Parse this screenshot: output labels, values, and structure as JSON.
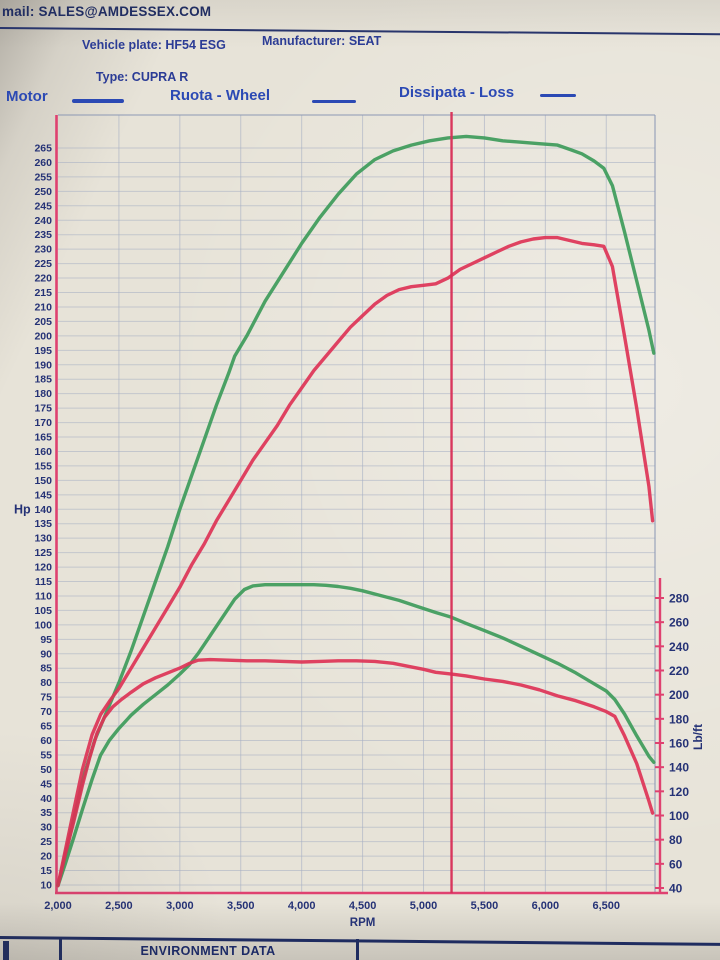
{
  "header": {
    "email_line": "mail: SALES@AMDESSEX.COM",
    "vehicle_plate": "Vehicle plate: HF54 ESG",
    "vehicle_type": "Type: CUPRA R",
    "manufacturer": "Manufacturer: SEAT"
  },
  "legend": {
    "items": [
      {
        "label": "Motor"
      },
      {
        "label": "Ruota - Wheel"
      },
      {
        "label": "Dissipata - Loss"
      }
    ],
    "swatch_color": "#2b49b4"
  },
  "footer": {
    "section_title": "ENVIRONMENT DATA"
  },
  "colors": {
    "paper": "#e7e3d8",
    "grid": "#a6afc4",
    "grid_border": "#8d99b5",
    "axis_pink": "#df4170",
    "marker_red": "#d92e57",
    "curve_green": "#3d9b5a",
    "curve_red": "#dd3356",
    "label_navy": "#253276",
    "header_blue": "#2b3c96"
  },
  "chart_data": {
    "type": "line",
    "title": "",
    "xlabel": "RPM",
    "x_axis": {
      "min": 2000,
      "max": 6900,
      "tick_step": 500,
      "tick_values": [
        2000,
        2500,
        3000,
        3500,
        4000,
        4500,
        5000,
        5500,
        6000,
        6500
      ],
      "tick_labels": [
        "2,000",
        "2,500",
        "3,000",
        "3,500",
        "4,000",
        "4,500",
        "5,000",
        "5,500",
        "6,000",
        "6,500"
      ]
    },
    "y_left": {
      "label": "Hp",
      "min": 10,
      "max": 265,
      "step": 5
    },
    "y_right": {
      "label": "Lb/ft",
      "min": 40,
      "max": 280,
      "step": 20
    },
    "marker_rpm": 5230,
    "grid": true,
    "series": [
      {
        "name": "motor-power",
        "legend": "Motor",
        "axis": "left",
        "unit": "Hp",
        "color": "#3d9b5a",
        "points": [
          [
            2000,
            10
          ],
          [
            2060,
            20
          ],
          [
            2130,
            33
          ],
          [
            2200,
            46
          ],
          [
            2300,
            60
          ],
          [
            2400,
            70
          ],
          [
            2500,
            80
          ],
          [
            2600,
            91
          ],
          [
            2700,
            103
          ],
          [
            2800,
            115
          ],
          [
            2900,
            127
          ],
          [
            3000,
            140
          ],
          [
            3100,
            152
          ],
          [
            3200,
            164
          ],
          [
            3300,
            176
          ],
          [
            3400,
            187
          ],
          [
            3450,
            193
          ],
          [
            3550,
            200
          ],
          [
            3700,
            212
          ],
          [
            3850,
            222
          ],
          [
            4000,
            232
          ],
          [
            4150,
            241
          ],
          [
            4300,
            249
          ],
          [
            4450,
            256
          ],
          [
            4600,
            261
          ],
          [
            4750,
            264
          ],
          [
            4900,
            266
          ],
          [
            5050,
            267.5
          ],
          [
            5200,
            268.5
          ],
          [
            5350,
            269
          ],
          [
            5500,
            268.5
          ],
          [
            5650,
            267.5
          ],
          [
            5800,
            267
          ],
          [
            5950,
            266.5
          ],
          [
            6100,
            266
          ],
          [
            6200,
            264.5
          ],
          [
            6300,
            263
          ],
          [
            6400,
            260.5
          ],
          [
            6480,
            258
          ],
          [
            6550,
            252
          ],
          [
            6650,
            236
          ],
          [
            6750,
            219
          ],
          [
            6850,
            202
          ],
          [
            6890,
            194
          ]
        ]
      },
      {
        "name": "wheel-power",
        "legend": "Ruota - Wheel",
        "axis": "left",
        "unit": "Hp",
        "color": "#dd3356",
        "points": [
          [
            2000,
            10
          ],
          [
            2060,
            22
          ],
          [
            2130,
            36
          ],
          [
            2200,
            50
          ],
          [
            2280,
            62
          ],
          [
            2350,
            69
          ],
          [
            2430,
            74
          ],
          [
            2500,
            78
          ],
          [
            2600,
            85
          ],
          [
            2700,
            92
          ],
          [
            2800,
            99
          ],
          [
            2900,
            106
          ],
          [
            3000,
            113
          ],
          [
            3100,
            121
          ],
          [
            3200,
            128
          ],
          [
            3300,
            136
          ],
          [
            3400,
            143
          ],
          [
            3500,
            150
          ],
          [
            3600,
            157
          ],
          [
            3700,
            163
          ],
          [
            3800,
            169
          ],
          [
            3900,
            176
          ],
          [
            4000,
            182
          ],
          [
            4100,
            188
          ],
          [
            4200,
            193
          ],
          [
            4300,
            198
          ],
          [
            4400,
            203
          ],
          [
            4500,
            207
          ],
          [
            4600,
            211
          ],
          [
            4700,
            214
          ],
          [
            4800,
            216
          ],
          [
            4900,
            217
          ],
          [
            5000,
            217.5
          ],
          [
            5100,
            218
          ],
          [
            5200,
            220
          ],
          [
            5300,
            223
          ],
          [
            5400,
            225
          ],
          [
            5500,
            227
          ],
          [
            5600,
            229
          ],
          [
            5700,
            231
          ],
          [
            5800,
            232.5
          ],
          [
            5900,
            233.5
          ],
          [
            6000,
            234
          ],
          [
            6100,
            234
          ],
          [
            6200,
            233
          ],
          [
            6300,
            232
          ],
          [
            6400,
            231.5
          ],
          [
            6480,
            231
          ],
          [
            6550,
            224
          ],
          [
            6650,
            200
          ],
          [
            6750,
            175
          ],
          [
            6850,
            148
          ],
          [
            6880,
            136
          ]
        ]
      },
      {
        "name": "motor-torque",
        "legend": "Motor",
        "axis": "right",
        "unit": "Lb/ft",
        "color": "#3d9b5a",
        "points": [
          [
            2000,
            42
          ],
          [
            2060,
            60
          ],
          [
            2130,
            82
          ],
          [
            2200,
            105
          ],
          [
            2280,
            130
          ],
          [
            2350,
            150
          ],
          [
            2420,
            162
          ],
          [
            2500,
            172
          ],
          [
            2600,
            183
          ],
          [
            2700,
            192
          ],
          [
            2800,
            200
          ],
          [
            2900,
            208
          ],
          [
            3000,
            217
          ],
          [
            3080,
            225
          ],
          [
            3150,
            234
          ],
          [
            3250,
            249
          ],
          [
            3350,
            264
          ],
          [
            3450,
            279
          ],
          [
            3530,
            287
          ],
          [
            3600,
            290
          ],
          [
            3700,
            291
          ],
          [
            3800,
            291
          ],
          [
            3900,
            291
          ],
          [
            4000,
            291
          ],
          [
            4100,
            291
          ],
          [
            4200,
            290.5
          ],
          [
            4300,
            289.5
          ],
          [
            4400,
            288
          ],
          [
            4500,
            286
          ],
          [
            4650,
            282
          ],
          [
            4800,
            278
          ],
          [
            4950,
            273
          ],
          [
            5100,
            268
          ],
          [
            5230,
            264
          ],
          [
            5350,
            259
          ],
          [
            5500,
            253
          ],
          [
            5650,
            247
          ],
          [
            5800,
            240
          ],
          [
            5950,
            233
          ],
          [
            6100,
            226
          ],
          [
            6250,
            218
          ],
          [
            6400,
            209
          ],
          [
            6500,
            203
          ],
          [
            6570,
            196
          ],
          [
            6650,
            184
          ],
          [
            6750,
            166
          ],
          [
            6850,
            149
          ],
          [
            6890,
            144
          ]
        ]
      },
      {
        "name": "wheel-torque",
        "legend": "Ruota - Wheel",
        "axis": "right",
        "unit": "Lb/ft",
        "color": "#dd3356",
        "points": [
          [
            2000,
            42
          ],
          [
            2060,
            68
          ],
          [
            2130,
            95
          ],
          [
            2200,
            125
          ],
          [
            2260,
            148
          ],
          [
            2320,
            168
          ],
          [
            2380,
            181
          ],
          [
            2450,
            190
          ],
          [
            2520,
            196
          ],
          [
            2600,
            202
          ],
          [
            2700,
            209
          ],
          [
            2800,
            214
          ],
          [
            2900,
            218
          ],
          [
            3000,
            222
          ],
          [
            3080,
            226
          ],
          [
            3150,
            228.5
          ],
          [
            3250,
            229
          ],
          [
            3400,
            228.5
          ],
          [
            3550,
            228
          ],
          [
            3700,
            228
          ],
          [
            3850,
            227.5
          ],
          [
            4000,
            227
          ],
          [
            4150,
            227.5
          ],
          [
            4300,
            228
          ],
          [
            4450,
            228
          ],
          [
            4600,
            227.5
          ],
          [
            4750,
            226
          ],
          [
            4900,
            223
          ],
          [
            5000,
            221
          ],
          [
            5100,
            218.5
          ],
          [
            5230,
            217
          ],
          [
            5350,
            215.5
          ],
          [
            5500,
            213
          ],
          [
            5650,
            211
          ],
          [
            5800,
            208
          ],
          [
            5950,
            204
          ],
          [
            6100,
            199
          ],
          [
            6250,
            195
          ],
          [
            6400,
            190
          ],
          [
            6500,
            186
          ],
          [
            6570,
            182
          ],
          [
            6650,
            166
          ],
          [
            6750,
            143
          ],
          [
            6850,
            112
          ],
          [
            6880,
            102
          ]
        ]
      }
    ]
  }
}
